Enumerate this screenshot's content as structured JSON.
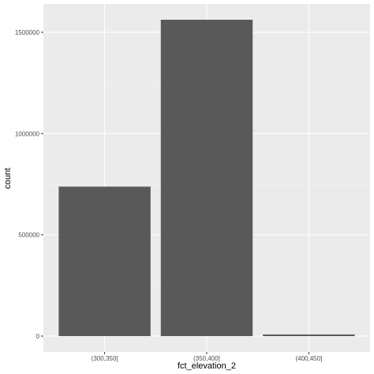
{
  "chart_data": {
    "type": "bar",
    "categories": [
      "(300,350]",
      "(350,400]",
      "(400,450]"
    ],
    "values": [
      738000,
      1562000,
      8000
    ],
    "xlabel": "fct_elevation_2",
    "ylabel": "count",
    "yticks": [
      0,
      500000,
      1000000,
      1500000
    ],
    "ytick_labels": [
      "0",
      "500000",
      "1000000",
      "1500000"
    ],
    "ylim": [
      -78000,
      1640000
    ],
    "grid": true,
    "legend": "none"
  },
  "colors": {
    "panel_background": "#ebebeb",
    "grid_major": "#ffffff",
    "grid_minor": "#f5f5f5",
    "bar_fill": "#595959",
    "tick_text": "#4d4d4d",
    "title_text": "#000000"
  }
}
